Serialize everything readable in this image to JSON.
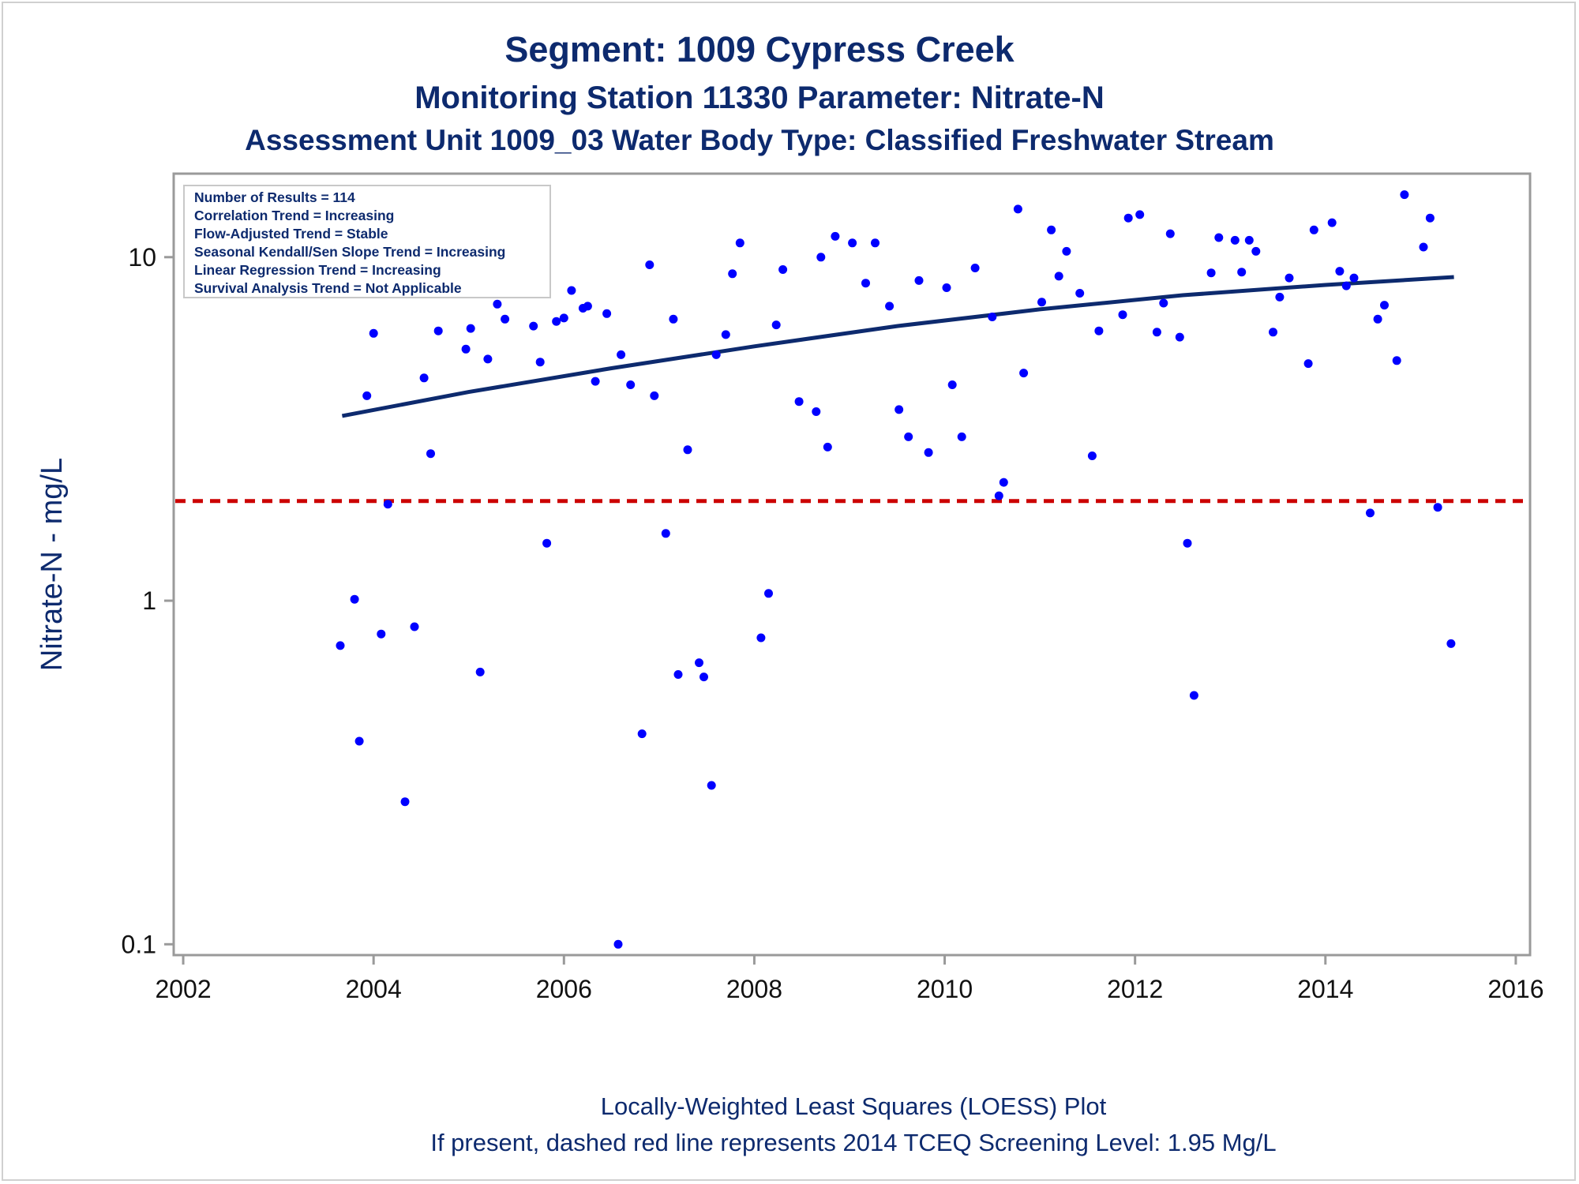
{
  "titles": {
    "line1": "Segment: 1009  Cypress Creek",
    "line2": "Monitoring Station 11330 Parameter: Nitrate-N",
    "line3": "Assessment Unit 1009_03   Water Body Type: Classified Freshwater Stream"
  },
  "stats_box": [
    "Number of Results = 114",
    "Correlation Trend = Increasing",
    "Flow-Adjusted Trend = Stable",
    "Seasonal Kendall/Sen Slope Trend = Increasing",
    "Linear Regression Trend = Increasing",
    "Survival Analysis Trend = Not Applicable"
  ],
  "footnotes": {
    "line1": "Locally-Weighted Least Squares (LOESS) Plot",
    "line2": "If present, dashed red line represents 2014 TCEQ Screening Level: 1.95 Mg/L"
  },
  "colors": {
    "title": "#0d2a6e",
    "points": "#0000ff",
    "trend_line": "#0d2a6e",
    "screening_line": "#cc0000",
    "frame": "#9a9a9a"
  },
  "chart_data": {
    "type": "scatter",
    "title": "Segment: 1009  Cypress Creek",
    "ylabel": "Nitrate-N - mg/L",
    "xlabel": "",
    "yscale": "log",
    "xlim": [
      2001.9,
      2016.15
    ],
    "ylim": [
      0.093,
      17.5
    ],
    "xticks": [
      2002,
      2004,
      2006,
      2008,
      2010,
      2012,
      2014,
      2016
    ],
    "xtick_labels": [
      "2002",
      "2004",
      "2006",
      "2008",
      "2010",
      "2012",
      "2014",
      "2016"
    ],
    "yticks": [
      0.1,
      1,
      10
    ],
    "ytick_labels": [
      "0.1",
      "1",
      "10"
    ],
    "grid": false,
    "screening_level": 1.95,
    "trend_line": {
      "x": [
        2003.67,
        2005.0,
        2006.5,
        2008.0,
        2009.5,
        2011.0,
        2012.5,
        2014.0,
        2015.35
      ],
      "y": [
        3.45,
        4.05,
        4.75,
        5.5,
        6.3,
        7.05,
        7.75,
        8.3,
        8.75
      ]
    },
    "points": {
      "x": [
        2003.65,
        2003.8,
        2003.85,
        2003.93,
        2004.0,
        2004.08,
        2004.15,
        2004.25,
        2004.33,
        2004.43,
        2004.53,
        2004.6,
        2004.68,
        2004.8,
        2004.87,
        2004.97,
        2005.02,
        2005.12,
        2005.2,
        2005.3,
        2005.38,
        2005.68,
        2005.75,
        2005.82,
        2005.92,
        2006.0,
        2006.08,
        2006.2,
        2006.25,
        2006.33,
        2006.45,
        2006.57,
        2006.6,
        2006.7,
        2006.82,
        2006.9,
        2006.95,
        2007.07,
        2007.15,
        2007.2,
        2007.3,
        2007.42,
        2007.47,
        2007.55,
        2007.6,
        2007.7,
        2007.77,
        2007.85,
        2008.07,
        2008.15,
        2008.23,
        2008.3,
        2008.47,
        2008.65,
        2008.7,
        2008.77,
        2008.85,
        2009.03,
        2009.17,
        2009.27,
        2009.42,
        2009.52,
        2009.62,
        2009.73,
        2009.83,
        2010.02,
        2010.08,
        2010.18,
        2010.32,
        2010.5,
        2010.57,
        2010.62,
        2010.77,
        2010.83,
        2011.02,
        2011.12,
        2011.2,
        2011.28,
        2011.42,
        2011.55,
        2011.62,
        2011.87,
        2011.93,
        2012.05,
        2012.23,
        2012.3,
        2012.37,
        2012.47,
        2012.55,
        2012.62,
        2012.8,
        2012.88,
        2013.05,
        2013.12,
        2013.2,
        2013.27,
        2013.45,
        2013.52,
        2013.62,
        2013.82,
        2013.88,
        2014.07,
        2014.15,
        2014.22,
        2014.3,
        2014.47,
        2014.55,
        2014.62,
        2014.75,
        2014.83,
        2015.03,
        2015.1,
        2015.18,
        2015.32
      ],
      "y": [
        0.74,
        1.01,
        0.39,
        3.95,
        6.0,
        0.8,
        1.91,
        9.6,
        0.26,
        0.84,
        4.45,
        2.68,
        6.1,
        8.75,
        8.7,
        5.4,
        6.2,
        0.62,
        5.05,
        7.3,
        6.6,
        6.3,
        4.95,
        1.47,
        6.5,
        6.65,
        8.0,
        7.1,
        7.2,
        4.35,
        6.85,
        0.1,
        5.2,
        4.25,
        0.41,
        9.5,
        3.95,
        1.57,
        6.6,
        0.61,
        2.75,
        0.66,
        0.6,
        0.29,
        5.2,
        5.95,
        8.95,
        11.0,
        0.78,
        1.05,
        6.35,
        9.2,
        3.8,
        3.55,
        10.0,
        2.8,
        11.5,
        11.0,
        8.4,
        11.0,
        7.2,
        3.6,
        3.0,
        8.55,
        2.7,
        8.15,
        4.25,
        3.0,
        9.3,
        6.7,
        2.02,
        2.21,
        13.8,
        4.6,
        7.4,
        12.0,
        8.8,
        10.4,
        7.85,
        2.64,
        6.1,
        6.8,
        13.0,
        13.3,
        6.05,
        7.35,
        11.7,
        5.85,
        1.47,
        0.53,
        9.0,
        11.4,
        11.2,
        9.05,
        11.2,
        10.4,
        6.05,
        7.65,
        8.7,
        4.9,
        12.0,
        12.6,
        9.1,
        8.25,
        8.7,
        1.8,
        6.6,
        7.25,
        5.0,
        15.2,
        10.7,
        13.0,
        1.87,
        0.75
      ]
    }
  }
}
